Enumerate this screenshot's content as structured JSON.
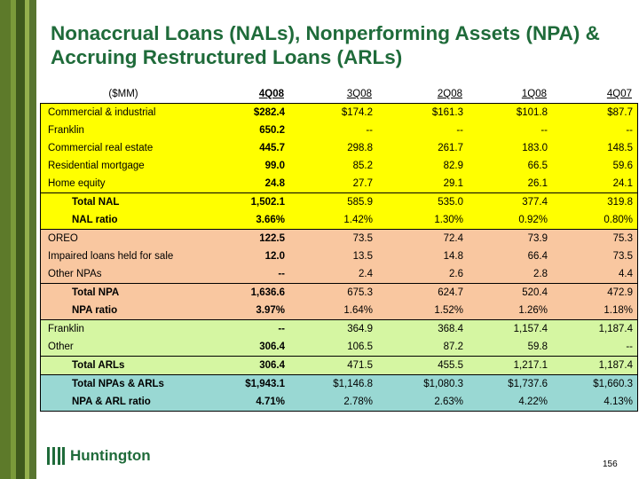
{
  "title": "Nonaccrual Loans (NALs), Nonperforming Assets (NPA) & Accruing Restructured Loans (ARLs)",
  "header": {
    "label": "($MM)",
    "cols": [
      "4Q08",
      "3Q08",
      "2Q08",
      "1Q08",
      "4Q07"
    ]
  },
  "nal_rows": [
    {
      "label": "Commercial & industrial",
      "v": [
        "$282.4",
        "$174.2",
        "$161.3",
        "$101.8",
        "$87.7"
      ]
    },
    {
      "label": "Franklin",
      "v": [
        "650.2",
        "--",
        "--",
        "--",
        "--"
      ]
    },
    {
      "label": "Commercial real estate",
      "v": [
        "445.7",
        "298.8",
        "261.7",
        "183.0",
        "148.5"
      ]
    },
    {
      "label": "Residential mortgage",
      "v": [
        "99.0",
        "85.2",
        "82.9",
        "66.5",
        "59.6"
      ]
    },
    {
      "label": "Home equity",
      "v": [
        "24.8",
        "27.7",
        "29.1",
        "26.1",
        "24.1"
      ]
    }
  ],
  "nal_totals": [
    {
      "label": "Total NAL",
      "v": [
        "1,502.1",
        "585.9",
        "535.0",
        "377.4",
        "319.8"
      ]
    },
    {
      "label": "NAL ratio",
      "v": [
        "3.66%",
        "1.42%",
        "1.30%",
        "0.92%",
        "0.80%"
      ]
    }
  ],
  "npa_rows": [
    {
      "label": "OREO",
      "v": [
        "122.5",
        "73.5",
        "72.4",
        "73.9",
        "75.3"
      ]
    },
    {
      "label": "Impaired loans held for sale",
      "v": [
        "12.0",
        "13.5",
        "14.8",
        "66.4",
        "73.5"
      ]
    },
    {
      "label": "Other NPAs",
      "v": [
        "--",
        "2.4",
        "2.6",
        "2.8",
        "4.4"
      ]
    }
  ],
  "npa_totals": [
    {
      "label": "Total NPA",
      "v": [
        "1,636.6",
        "675.3",
        "624.7",
        "520.4",
        "472.9"
      ]
    },
    {
      "label": "NPA ratio",
      "v": [
        "3.97%",
        "1.64%",
        "1.52%",
        "1.26%",
        "1.18%"
      ]
    }
  ],
  "arl_rows": [
    {
      "label": "Franklin",
      "v": [
        "--",
        "364.9",
        "368.4",
        "1,157.4",
        "1,187.4"
      ]
    },
    {
      "label": "Other",
      "v": [
        "306.4",
        "106.5",
        "87.2",
        "59.8",
        "--"
      ]
    }
  ],
  "arl_totals": [
    {
      "label": "Total ARLs",
      "v": [
        "306.4",
        "471.5",
        "455.5",
        "1,217.1",
        "1,187.4"
      ]
    }
  ],
  "grand_totals": [
    {
      "label": "Total NPAs & ARLs",
      "v": [
        "$1,943.1",
        "$1,146.8",
        "$1,080.3",
        "$1,737.6",
        "$1,660.3"
      ]
    },
    {
      "label": "NPA & ARL ratio",
      "v": [
        "4.71%",
        "2.78%",
        "2.63%",
        "4.22%",
        "4.13%"
      ]
    }
  ],
  "logo_text": "Huntington",
  "page_number": "156",
  "colors": {
    "title": "#1f6b3a",
    "nal_bg": "#ffff00",
    "npa_bg": "#f9c7a0",
    "arl_bg": "#d5f6a2",
    "total_bg": "#99d8d3"
  }
}
